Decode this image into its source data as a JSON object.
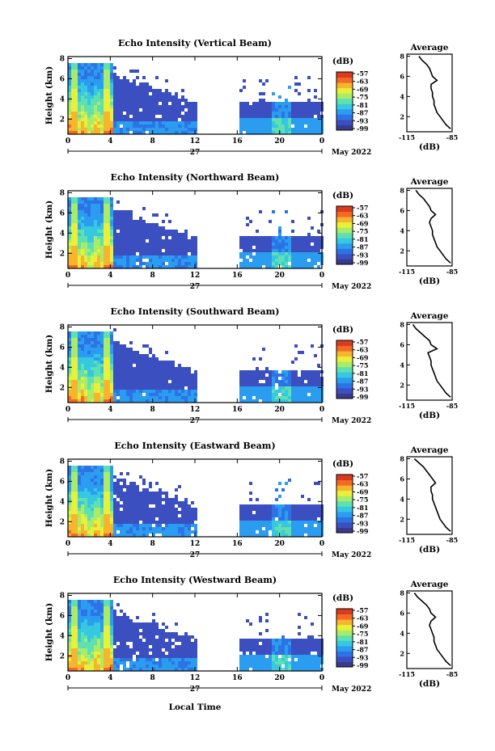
{
  "figure": {
    "xlabel": "Local Time",
    "date_label": "May 2022",
    "day_label": "27",
    "colorbar_unit": "(dB)",
    "avg_title": "Average",
    "avg_xlabel": "(dB)"
  },
  "colors": {
    "colormap": [
      "#3a3a8c",
      "#3b4fc0",
      "#2e73e6",
      "#2a9df0",
      "#36c8e0",
      "#5fe0b0",
      "#a8ec6a",
      "#e8f03a",
      "#f7b52e",
      "#f26a24",
      "#d93b1f"
    ],
    "background": "#ffffff"
  },
  "chart_data": [
    {
      "type": "heatmap",
      "title": "Echo Intensity (Vertical Beam)",
      "ylabel": "Height (km)",
      "x_ticks": [
        "0",
        "4",
        "8",
        "12",
        "16",
        "20",
        "0"
      ],
      "x_range": [
        0,
        24
      ],
      "y_ticks": [
        "2",
        "4",
        "6",
        "8"
      ],
      "y_range": [
        0.5,
        8.2
      ],
      "colorbar_ticks": [
        "-57",
        "-63",
        "-69",
        "-75",
        "-81",
        "-87",
        "-93",
        "-99"
      ],
      "colorbar_range": [
        -99,
        -57
      ],
      "data_gap_hours": [
        12,
        16
      ],
      "average_profile": {
        "x_ticks": [
          "-115",
          "-85"
        ],
        "xlim": [
          -115,
          -85
        ],
        "y_ticks": [
          "2",
          "4",
          "6",
          "8"
        ],
        "ylim": [
          0.5,
          8.2
        ],
        "height": [
          8.0,
          7.6,
          7.2,
          6.8,
          6.4,
          6.0,
          5.6,
          5.2,
          4.8,
          4.4,
          4.0,
          3.6,
          3.2,
          2.8,
          2.4,
          2.0,
          1.6,
          1.2,
          0.8
        ],
        "value": [
          -107,
          -105,
          -102,
          -100,
          -99,
          -98,
          -95,
          -99,
          -99,
          -98,
          -98,
          -97,
          -97,
          -96,
          -95,
          -93,
          -91,
          -89,
          -86
        ]
      }
    },
    {
      "type": "heatmap",
      "title": "Echo Intensity (Northward Beam)",
      "ylabel": "Height (km)",
      "x_ticks": [
        "0",
        "4",
        "8",
        "12",
        "16",
        "20",
        "0"
      ],
      "x_range": [
        0,
        24
      ],
      "y_ticks": [
        "2",
        "4",
        "6",
        "8"
      ],
      "y_range": [
        0.5,
        8.2
      ],
      "colorbar_ticks": [
        "-57",
        "-63",
        "-69",
        "-75",
        "-81",
        "-87",
        "-93",
        "-99"
      ],
      "colorbar_range": [
        -99,
        -57
      ],
      "data_gap_hours": [
        12,
        16
      ],
      "average_profile": {
        "x_ticks": [
          "-115",
          "-85"
        ],
        "xlim": [
          -115,
          -85
        ],
        "y_ticks": [
          "2",
          "4",
          "6",
          "8"
        ],
        "ylim": [
          0.5,
          8.2
        ],
        "height": [
          8.0,
          7.6,
          7.2,
          6.8,
          6.4,
          6.0,
          5.6,
          5.2,
          4.8,
          4.4,
          4.0,
          3.6,
          3.2,
          2.8,
          2.4,
          2.0,
          1.6,
          1.2,
          0.8
        ],
        "value": [
          -109,
          -107,
          -104,
          -102,
          -100,
          -99,
          -96,
          -99,
          -100,
          -99,
          -98,
          -98,
          -97,
          -96,
          -95,
          -93,
          -91,
          -89,
          -86
        ]
      }
    },
    {
      "type": "heatmap",
      "title": "Echo Intensity (Southward Beam)",
      "ylabel": "Height (km)",
      "x_ticks": [
        "0",
        "4",
        "8",
        "12",
        "16",
        "20",
        "0"
      ],
      "x_range": [
        0,
        24
      ],
      "y_ticks": [
        "2",
        "4",
        "6",
        "8"
      ],
      "y_range": [
        0.5,
        8.2
      ],
      "colorbar_ticks": [
        "-57",
        "-63",
        "-69",
        "-75",
        "-81",
        "-87",
        "-93",
        "-99"
      ],
      "colorbar_range": [
        -99,
        -57
      ],
      "data_gap_hours": [
        12,
        16
      ],
      "average_profile": {
        "x_ticks": [
          "-115",
          "-85"
        ],
        "xlim": [
          -115,
          -85
        ],
        "y_ticks": [
          "2",
          "4",
          "6",
          "8"
        ],
        "ylim": [
          0.5,
          8.2
        ],
        "height": [
          8.0,
          7.6,
          7.2,
          6.8,
          6.4,
          6.0,
          5.6,
          5.2,
          4.8,
          4.4,
          4.0,
          3.6,
          3.2,
          2.8,
          2.4,
          2.0,
          1.6,
          1.2,
          0.8
        ],
        "value": [
          -111,
          -109,
          -106,
          -103,
          -100,
          -99,
          -95,
          -101,
          -100,
          -99,
          -99,
          -98,
          -97,
          -96,
          -95,
          -93,
          -91,
          -89,
          -86
        ]
      }
    },
    {
      "type": "heatmap",
      "title": "Echo Intensity (Eastward Beam)",
      "ylabel": "Height (km)",
      "x_ticks": [
        "0",
        "4",
        "8",
        "12",
        "16",
        "20",
        "0"
      ],
      "x_range": [
        0,
        24
      ],
      "y_ticks": [
        "2",
        "4",
        "6",
        "8"
      ],
      "y_range": [
        0.5,
        8.2
      ],
      "colorbar_ticks": [
        "-57",
        "-63",
        "-69",
        "-75",
        "-81",
        "-87",
        "-93",
        "-99"
      ],
      "colorbar_range": [
        -99,
        -57
      ],
      "data_gap_hours": [
        12,
        16
      ],
      "average_profile": {
        "x_ticks": [
          "-115",
          "-85"
        ],
        "xlim": [
          -115,
          -85
        ],
        "y_ticks": [
          "2",
          "4",
          "6",
          "8"
        ],
        "ylim": [
          0.5,
          8.2
        ],
        "height": [
          8.0,
          7.6,
          7.2,
          6.8,
          6.4,
          6.0,
          5.6,
          5.2,
          4.8,
          4.4,
          4.0,
          3.6,
          3.2,
          2.8,
          2.4,
          2.0,
          1.6,
          1.2,
          0.8
        ],
        "value": [
          -110,
          -107,
          -104,
          -102,
          -100,
          -98,
          -96,
          -99,
          -99,
          -98,
          -98,
          -97,
          -96,
          -95,
          -94,
          -93,
          -91,
          -89,
          -86
        ]
      }
    },
    {
      "type": "heatmap",
      "title": "Echo Intensity (Westward Beam)",
      "ylabel": "Height (km)",
      "x_ticks": [
        "0",
        "4",
        "8",
        "12",
        "16",
        "20",
        "0"
      ],
      "x_range": [
        0,
        24
      ],
      "y_ticks": [
        "2",
        "4",
        "6",
        "8"
      ],
      "y_range": [
        0.5,
        8.2
      ],
      "colorbar_ticks": [
        "-57",
        "-63",
        "-69",
        "-75",
        "-81",
        "-87",
        "-93",
        "-99"
      ],
      "colorbar_range": [
        -99,
        -57
      ],
      "data_gap_hours": [
        12,
        16
      ],
      "average_profile": {
        "x_ticks": [
          "-115",
          "-85"
        ],
        "xlim": [
          -115,
          -85
        ],
        "y_ticks": [
          "2",
          "4",
          "6",
          "8"
        ],
        "ylim": [
          0.5,
          8.2
        ],
        "height": [
          8.0,
          7.6,
          7.2,
          6.8,
          6.4,
          6.0,
          5.6,
          5.2,
          4.8,
          4.4,
          4.0,
          3.6,
          3.2,
          2.8,
          2.4,
          2.0,
          1.6,
          1.2,
          0.8
        ],
        "value": [
          -110,
          -108,
          -105,
          -102,
          -100,
          -99,
          -96,
          -99,
          -100,
          -99,
          -98,
          -97,
          -97,
          -96,
          -95,
          -93,
          -91,
          -89,
          -86
        ]
      }
    }
  ]
}
